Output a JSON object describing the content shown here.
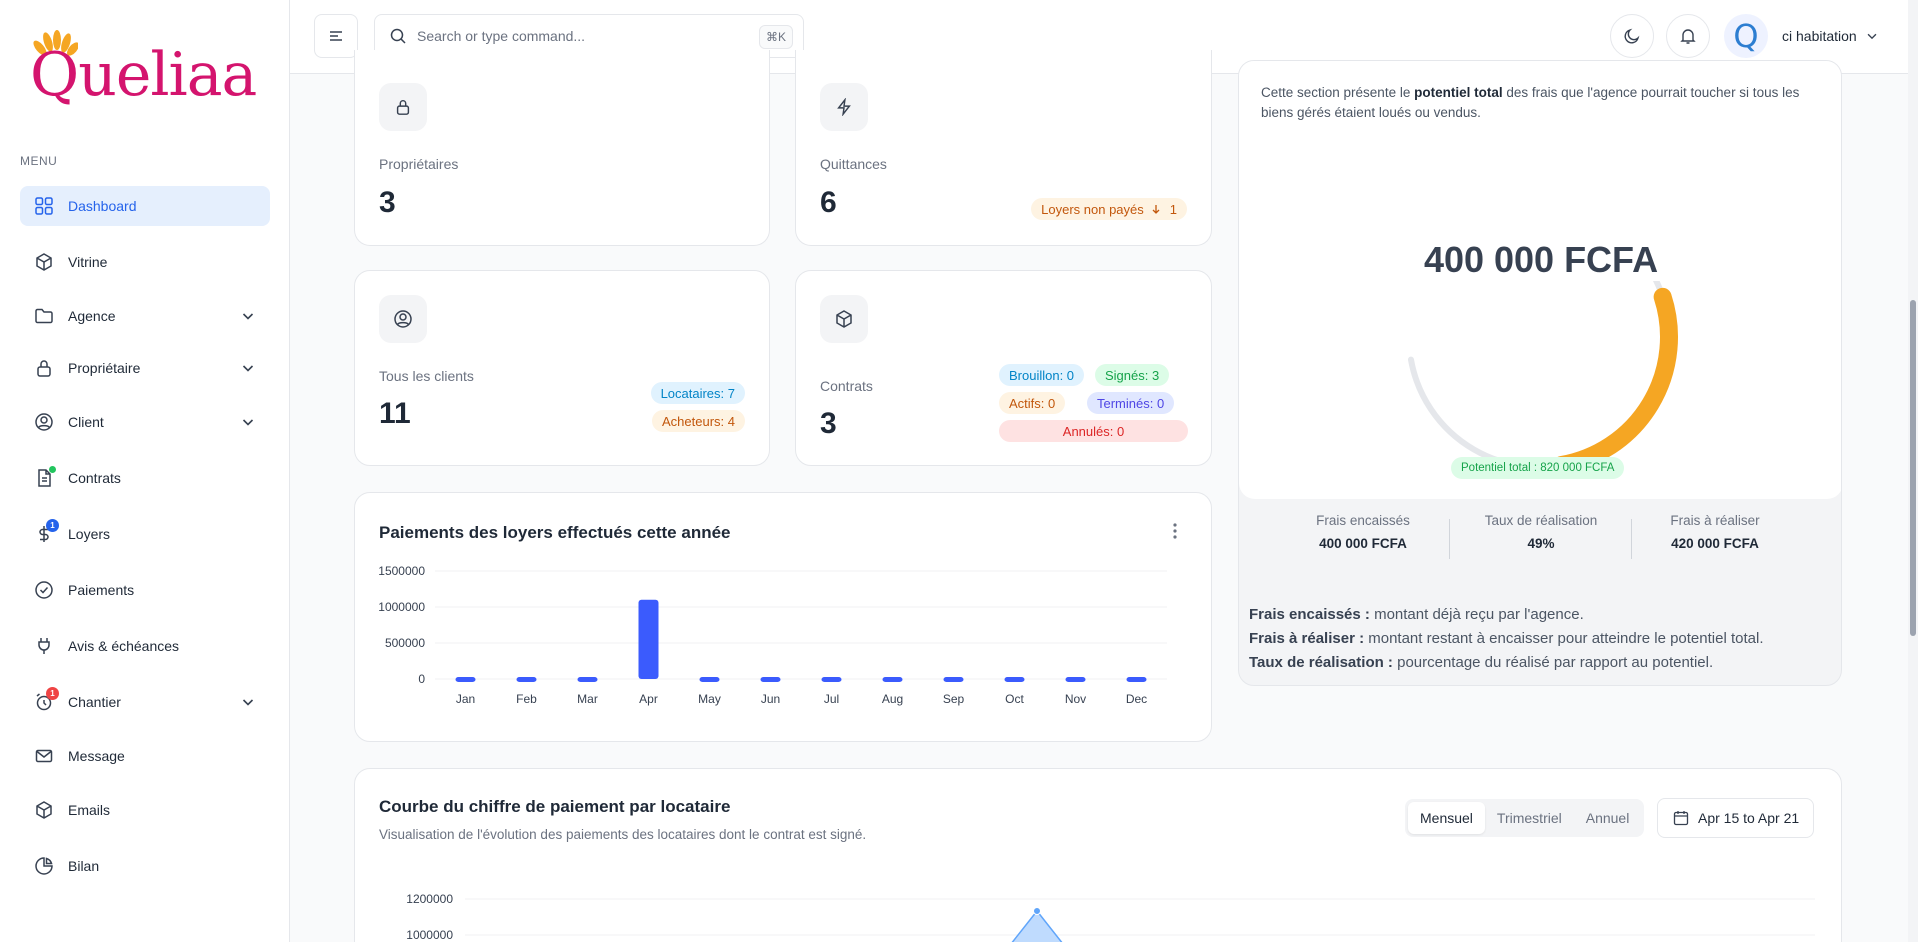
{
  "brand": {
    "name": "Queliaa"
  },
  "sidebar": {
    "menu_label": "MENU",
    "items": [
      {
        "label": "Dashboard"
      },
      {
        "label": "Vitrine"
      },
      {
        "label": "Agence"
      },
      {
        "label": "Propriétaire"
      },
      {
        "label": "Client"
      },
      {
        "label": "Contrats"
      },
      {
        "label": "Loyers",
        "badge": "1"
      },
      {
        "label": "Paiements"
      },
      {
        "label": "Avis & échéances"
      },
      {
        "label": "Chantier",
        "badge": "1"
      },
      {
        "label": "Message"
      },
      {
        "label": "Emails"
      },
      {
        "label": "Bilan"
      }
    ]
  },
  "topbar": {
    "search_placeholder": "Search or type command...",
    "shortcut": "⌘K",
    "user_name": "ci habitation",
    "avatar_letter": "Q"
  },
  "stats": {
    "proprietaires": {
      "label": "Propriétaires",
      "value": "3"
    },
    "quittances": {
      "label": "Quittances",
      "value": "6",
      "pill_label": "Loyers non payés",
      "pill_count": "1"
    },
    "clients": {
      "label": "Tous les clients",
      "value": "11",
      "locataires": "Locataires: 7",
      "acheteurs": "Acheteurs: 4"
    },
    "contrats": {
      "label": "Contrats",
      "value": "3",
      "brouillon": "Brouillon: 0",
      "signes": "Signés: 3",
      "actifs": "Actifs: 0",
      "termines": "Terminés: 0",
      "annules": "Annulés: 0"
    }
  },
  "potential": {
    "description_prefix": "Cette section présente le ",
    "description_bold": "potentiel total",
    "description_suffix": " des frais que l'agence pourrait toucher si tous les biens gérés étaient loués ou vendus.",
    "amount": "400 000 FCFA",
    "ratio": 0.49,
    "badge": "Potentiel total : 820 000 FCFA",
    "stats": [
      {
        "label": "Frais encaissés",
        "value": "400 000 FCFA"
      },
      {
        "label": "Taux de réalisation",
        "value": "49%"
      },
      {
        "label": "Frais à réaliser",
        "value": "420 000 FCFA"
      }
    ],
    "notes": [
      {
        "term": "Frais encaissés :",
        "text": " montant déjà reçu par l'agence."
      },
      {
        "term": "Frais à réaliser :",
        "text": " montant restant à encaisser pour atteindre le potentiel total."
      },
      {
        "term": "Taux de réalisation :",
        "text": " pourcentage du réalisé par rapport au potentiel."
      }
    ],
    "colors": {
      "accent": "#f5a623",
      "track": "#e5e7eb"
    }
  },
  "rent_chart": {
    "title": "Paiements des loyers effectués cette année",
    "menu_icon": "more-vertical-icon"
  },
  "tenant_chart": {
    "title": "Courbe du chiffre de paiement par locataire",
    "subtitle": "Visualisation de l'évolution des paiements des locataires dont le contrat est signé.",
    "periods": [
      "Mensuel",
      "Trimestriel",
      "Annuel"
    ],
    "active_period": "Mensuel",
    "date_range": "Apr 15 to Apr 21"
  },
  "chart_data": [
    {
      "type": "bar",
      "title": "Paiements des loyers effectués cette année",
      "categories": [
        "Jan",
        "Feb",
        "Mar",
        "Apr",
        "May",
        "Jun",
        "Jul",
        "Aug",
        "Sep",
        "Oct",
        "Nov",
        "Dec"
      ],
      "values": [
        0,
        0,
        0,
        1100000,
        0,
        0,
        0,
        0,
        0,
        0,
        0,
        0
      ],
      "yticks": [
        0,
        500000,
        1000000,
        1500000
      ],
      "ylim": [
        0,
        1500000
      ],
      "color": "#3b5bfd",
      "grid": true
    },
    {
      "type": "area",
      "title": "Courbe du chiffre de paiement par locataire",
      "yticks": [
        1000000,
        1200000
      ],
      "peak_value": 1200000,
      "color": "#60a5fa"
    }
  ]
}
